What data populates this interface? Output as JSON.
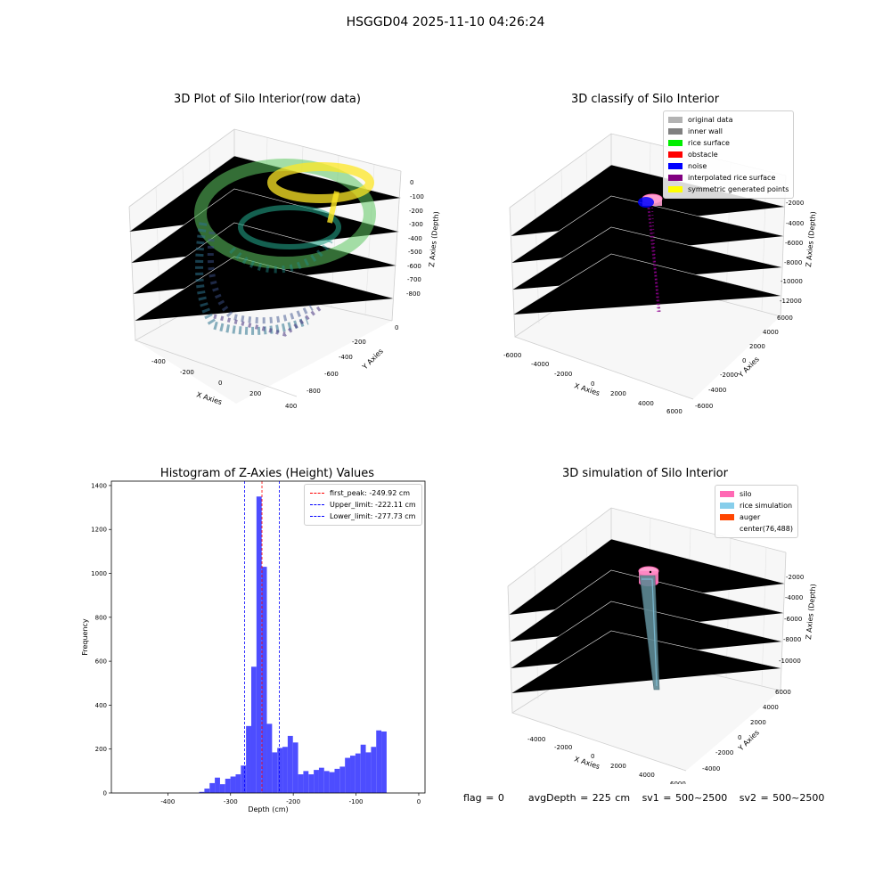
{
  "figure": {
    "suptitle": "HSGGD04 2025-11-10 04:26:24",
    "footer": {
      "flag": "flag = 0",
      "avg_depth": "avgDepth = 225 cm",
      "sv1": "sv1 = 500~2500",
      "sv2": "sv2 = 500~2500"
    }
  },
  "panels": {
    "raw": {
      "title": "3D Plot of Silo Interior(row data)",
      "xlabel": "X Axies",
      "ylabel": "Y Axies",
      "zlabel": "Z Axies (Depth)",
      "xticks": [
        "-400",
        "-200",
        "0",
        "200",
        "400"
      ],
      "yticks": [
        "0",
        "-200",
        "-400",
        "-600",
        "-800"
      ],
      "zticks": [
        "0",
        "-100",
        "-200",
        "-300",
        "-400",
        "-500",
        "-600",
        "-700",
        "-800"
      ],
      "colormap": [
        "#440154",
        "#3b528b",
        "#21918c",
        "#5ec962",
        "#fde725"
      ]
    },
    "classify": {
      "title": "3D classify of Silo Interior",
      "xlabel": "X Axies",
      "ylabel": "Y Axies",
      "zlabel": "Z Axies (Depth)",
      "xticks": [
        "-6000",
        "-4000",
        "-2000",
        "0",
        "2000",
        "4000",
        "6000"
      ],
      "yticks": [
        "6000",
        "4000",
        "2000",
        "0",
        "-2000",
        "-4000",
        "-6000"
      ],
      "zticks": [
        "-2000",
        "-4000",
        "-6000",
        "-8000",
        "-10000",
        "-12000"
      ],
      "legend": [
        {
          "label": "original data",
          "color": "#b3b3b3"
        },
        {
          "label": "inner wall",
          "color": "#808080"
        },
        {
          "label": "rice surface",
          "color": "#00ee00"
        },
        {
          "label": "obstacle",
          "color": "#ff0000"
        },
        {
          "label": "noise",
          "color": "#0000ff"
        },
        {
          "label": "interpolated rice surface",
          "color": "#800080"
        },
        {
          "label": "symmetric generated points",
          "color": "#ffff00"
        }
      ]
    },
    "simulation": {
      "title": "3D simulation of Silo Interior",
      "xlabel": "X Axies",
      "ylabel": "Y Axies",
      "zlabel": "Z Axies (Depth)",
      "xticks": [
        "-4000",
        "-2000",
        "0",
        "2000",
        "4000",
        "6000"
      ],
      "yticks": [
        "6000",
        "4000",
        "2000",
        "0",
        "-2000",
        "-4000"
      ],
      "zticks": [
        "-2000",
        "-4000",
        "-6000",
        "-8000",
        "-10000"
      ],
      "legend": [
        {
          "label": "silo",
          "color": "#ff69b4"
        },
        {
          "label": "rice simulation",
          "color": "#87ceeb"
        },
        {
          "label": "auger",
          "color": "#ff4500"
        },
        {
          "label": "center(76,488)",
          "color": ""
        }
      ]
    }
  },
  "chart_data": [
    {
      "type": "histogram",
      "title": "Histogram of Z-Axies (Height) Values",
      "xlabel": "Depth (cm)",
      "ylabel": "Frequency",
      "xlim": [
        -490,
        10
      ],
      "ylim": [
        0,
        1420
      ],
      "xticks": [
        -400,
        -300,
        -200,
        -100,
        0
      ],
      "yticks": [
        0,
        200,
        400,
        600,
        800,
        1000,
        1200,
        1400
      ],
      "bar_color": "#4d4dff",
      "bin_start": -350,
      "bin_width": 8.3,
      "counts": [
        5,
        20,
        45,
        70,
        40,
        65,
        75,
        85,
        125,
        305,
        575,
        1350,
        1030,
        315,
        185,
        205,
        210,
        260,
        230,
        85,
        100,
        85,
        105,
        115,
        100,
        95,
        110,
        120,
        160,
        170,
        180,
        220,
        185,
        210,
        285,
        280
      ],
      "lines": [
        {
          "label": "first_peak: -249.92 cm",
          "value": -249.92,
          "color": "#ff0000"
        },
        {
          "label": "Upper_limit: -222.11 cm",
          "value": -222.11,
          "color": "#0000ff"
        },
        {
          "label": "Lower_limit: -277.73 cm",
          "value": -277.73,
          "color": "#0000ff"
        }
      ],
      "grid": false,
      "legend_position": "top-right"
    }
  ]
}
